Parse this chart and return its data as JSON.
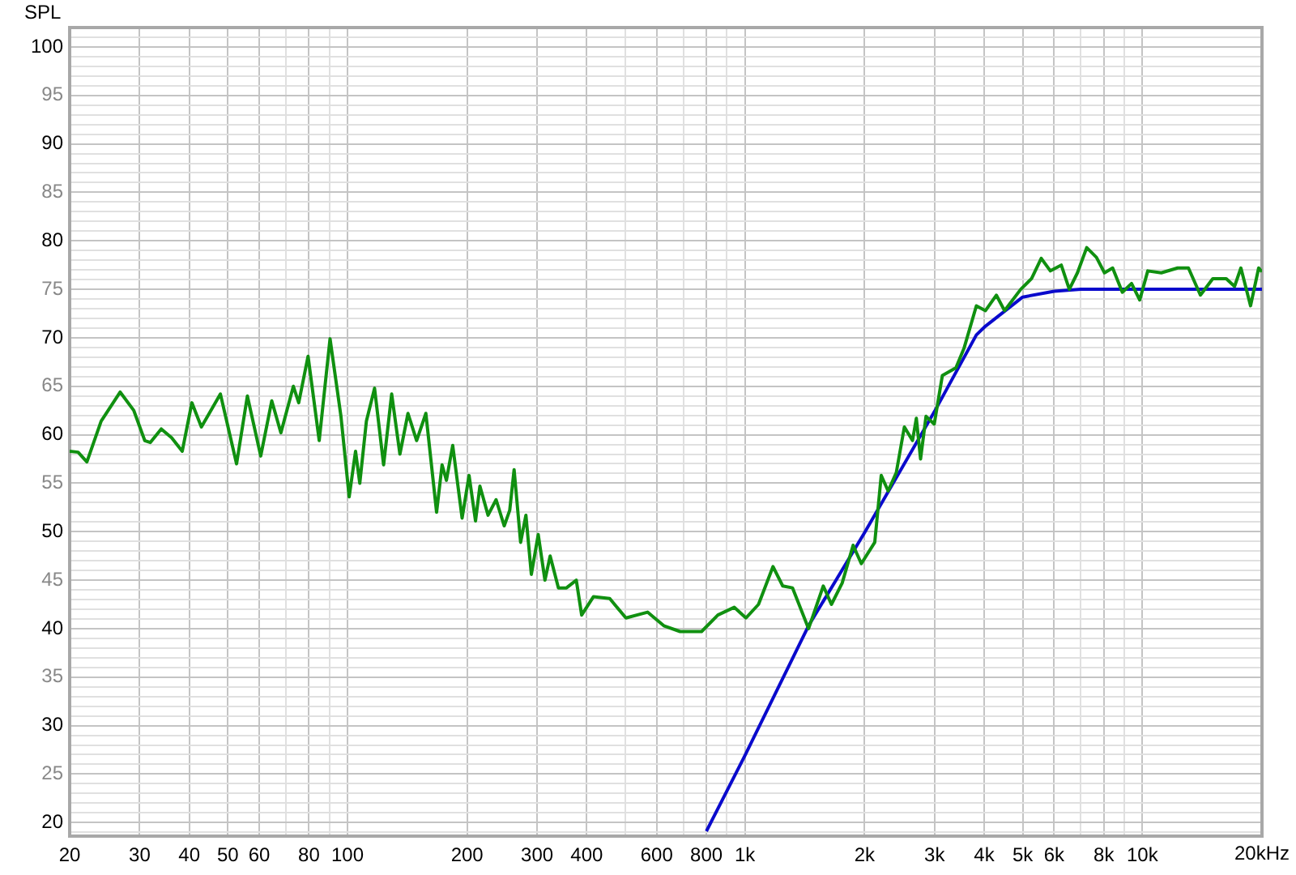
{
  "chart_data": {
    "type": "line",
    "ylabel": "SPL",
    "log": "x",
    "grid": true,
    "marker": "none",
    "xlim": [
      20,
      20000
    ],
    "ylim": [
      18.6,
      102
    ],
    "xticks": [
      20,
      30,
      40,
      50,
      60,
      {
        "value": 70,
        "label": null
      },
      80,
      {
        "value": 90,
        "label": null
      },
      100,
      200,
      300,
      400,
      {
        "value": 500,
        "label": null
      },
      600,
      {
        "value": 700,
        "label": null
      },
      800,
      {
        "value": 900,
        "label": null
      },
      {
        "value": 1000,
        "label": "1k"
      },
      {
        "value": 2000,
        "label": "2k"
      },
      {
        "value": 3000,
        "label": "3k"
      },
      {
        "value": 4000,
        "label": "4k"
      },
      {
        "value": 5000,
        "label": "5k"
      },
      {
        "value": 6000,
        "label": "6k"
      },
      {
        "value": 7000,
        "label": null
      },
      {
        "value": 8000,
        "label": "8k"
      },
      {
        "value": 9000,
        "label": null
      },
      {
        "value": 10000,
        "label": "10k"
      },
      {
        "value": 20000,
        "label": "20k"
      }
    ],
    "xlabel": "Hz",
    "yticks": [
      {
        "value": 19,
        "label": null
      },
      20,
      {
        "value": 21,
        "label": null
      },
      {
        "value": 22,
        "label": null
      },
      {
        "value": 23,
        "label": null
      },
      {
        "value": 24,
        "label": null
      },
      25,
      {
        "value": 26,
        "label": null
      },
      {
        "value": 27,
        "label": null
      },
      {
        "value": 28,
        "label": null
      },
      {
        "value": 29,
        "label": null
      },
      30,
      {
        "value": 31,
        "label": null
      },
      {
        "value": 32,
        "label": null
      },
      {
        "value": 33,
        "label": null
      },
      {
        "value": 34,
        "label": null
      },
      35,
      {
        "value": 36,
        "label": null
      },
      {
        "value": 37,
        "label": null
      },
      {
        "value": 38,
        "label": null
      },
      {
        "value": 39,
        "label": null
      },
      40,
      {
        "value": 41,
        "label": null
      },
      {
        "value": 42,
        "label": null
      },
      {
        "value": 43,
        "label": null
      },
      {
        "value": 44,
        "label": null
      },
      45,
      {
        "value": 46,
        "label": null
      },
      {
        "value": 47,
        "label": null
      },
      {
        "value": 48,
        "label": null
      },
      {
        "value": 49,
        "label": null
      },
      50,
      {
        "value": 51,
        "label": null
      },
      {
        "value": 52,
        "label": null
      },
      {
        "value": 53,
        "label": null
      },
      {
        "value": 54,
        "label": null
      },
      55,
      {
        "value": 56,
        "label": null
      },
      {
        "value": 57,
        "label": null
      },
      {
        "value": 58,
        "label": null
      },
      {
        "value": 59,
        "label": null
      },
      60,
      {
        "value": 61,
        "label": null
      },
      {
        "value": 62,
        "label": null
      },
      {
        "value": 63,
        "label": null
      },
      {
        "value": 64,
        "label": null
      },
      65,
      {
        "value": 66,
        "label": null
      },
      {
        "value": 67,
        "label": null
      },
      {
        "value": 68,
        "label": null
      },
      {
        "value": 69,
        "label": null
      },
      70,
      {
        "value": 71,
        "label": null
      },
      {
        "value": 72,
        "label": null
      },
      {
        "value": 73,
        "label": null
      },
      {
        "value": 74,
        "label": null
      },
      75,
      {
        "value": 76,
        "label": null
      },
      {
        "value": 77,
        "label": null
      },
      {
        "value": 78,
        "label": null
      },
      {
        "value": 79,
        "label": null
      },
      80,
      {
        "value": 81,
        "label": null
      },
      {
        "value": 82,
        "label": null
      },
      {
        "value": 83,
        "label": null
      },
      {
        "value": 84,
        "label": null
      },
      85,
      {
        "value": 86,
        "label": null
      },
      {
        "value": 87,
        "label": null
      },
      {
        "value": 88,
        "label": null
      },
      {
        "value": 89,
        "label": null
      },
      90,
      {
        "value": 91,
        "label": null
      },
      {
        "value": 92,
        "label": null
      },
      {
        "value": 93,
        "label": null
      },
      {
        "value": 94,
        "label": null
      },
      95,
      {
        "value": 96,
        "label": null
      },
      {
        "value": 97,
        "label": null
      },
      {
        "value": 98,
        "label": null
      },
      {
        "value": 99,
        "label": null
      },
      100,
      {
        "value": 101,
        "label": null
      }
    ],
    "series": [
      {
        "color": "#109010",
        "x": [
          20,
          21,
          22.1,
          24,
          26.8,
          29,
          30.9,
          31.9,
          34,
          36.1,
          38.4,
          40.6,
          42.9,
          47.9,
          52.6,
          56,
          60.5,
          64.5,
          68,
          73.1,
          75.4,
          79.6,
          84.9,
          90.4,
          96.3,
          101,
          104.8,
          107.4,
          111.6,
          117,
          123.3,
          129.2,
          135.5,
          142,
          149.3,
          157.5,
          167.6,
          173,
          177.4,
          184,
          194.3,
          202.3,
          210,
          215.4,
          225.8,
          236.6,
          248,
          256,
          262.6,
          272.7,
          281.2,
          290.2,
          302,
          314,
          323.6,
          339.5,
          355.6,
          376.5,
          388.4,
          416,
          457,
          502,
          569,
          625,
          687,
          778,
          855,
          940,
          1006,
          1082,
          1177,
          1245,
          1318,
          1446,
          1575,
          1651,
          1757,
          1872,
          1963,
          2122,
          2203,
          2293,
          2404,
          2519,
          2641,
          2700,
          2767,
          2856,
          2995,
          3139,
          3396,
          3558,
          3823,
          4030,
          4292,
          4500,
          4943,
          5263,
          5567,
          5870,
          6252,
          6550,
          6866,
          7245,
          7664,
          8031,
          8420,
          8906,
          9394,
          9851,
          10320,
          11160,
          12270,
          13060,
          14000,
          15040,
          16260,
          17060,
          17700,
          18720,
          19620,
          20000
        ],
        "values": [
          58.3,
          58.2,
          57.2,
          61.4,
          64.4,
          62.5,
          59.4,
          59.2,
          60.6,
          59.7,
          58.3,
          63.3,
          60.8,
          64.2,
          57,
          64,
          57.8,
          63.5,
          60.2,
          65,
          63.3,
          68.1,
          59.4,
          69.9,
          61.9,
          53.6,
          58.3,
          55,
          61.4,
          64.8,
          56.9,
          64.2,
          58,
          62.2,
          59.4,
          62.2,
          52,
          56.9,
          55.3,
          58.9,
          51.4,
          55.8,
          51.1,
          54.7,
          51.7,
          53.3,
          50.6,
          52.2,
          56.4,
          48.9,
          51.7,
          45.6,
          49.7,
          45,
          47.5,
          44.2,
          44.2,
          45,
          41.4,
          43.3,
          43.1,
          41.1,
          41.7,
          40.3,
          39.7,
          39.7,
          41.4,
          42.2,
          41.1,
          42.5,
          46.4,
          44.4,
          44.2,
          40,
          44.4,
          42.5,
          44.7,
          48.6,
          46.7,
          48.9,
          55.8,
          54.2,
          56.1,
          60.8,
          59.4,
          61.7,
          57.5,
          61.9,
          61.1,
          66.1,
          66.9,
          68.9,
          73.3,
          72.8,
          74.4,
          72.8,
          75,
          76.1,
          78.2,
          76.9,
          77.5,
          75,
          76.7,
          79.3,
          78.3,
          76.7,
          77.2,
          74.7,
          75.6,
          73.9,
          76.9,
          76.7,
          77.2,
          77.2,
          74.4,
          76.1,
          76.1,
          75.3,
          77.2,
          73.3,
          77.2,
          76.8
        ]
      },
      {
        "color": "#0a0acc",
        "x": [
          800,
          1000,
          1446,
          2000,
          3000,
          3823,
          4030,
          5000,
          6000,
          7000,
          20000
        ],
        "values": [
          19.1,
          26.9,
          40.3,
          49.9,
          62.4,
          70.3,
          71.2,
          74.2,
          74.8,
          75,
          75
        ]
      }
    ]
  }
}
